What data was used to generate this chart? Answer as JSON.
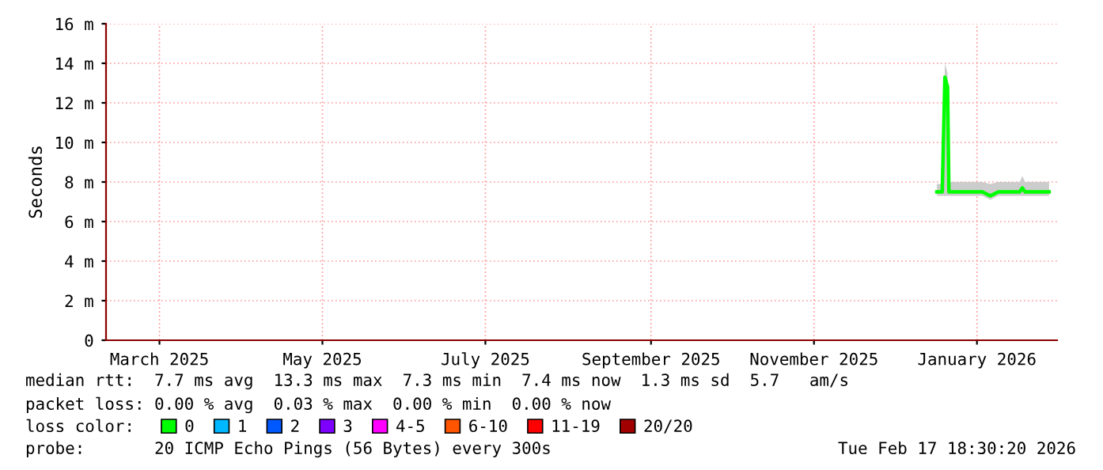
{
  "chart_data": {
    "type": "line",
    "ylabel": "Seconds",
    "legend_title": "loss color:",
    "legend": "bottom",
    "grid": true,
    "line_style": "solid",
    "marker": "none",
    "x": [
      "2026-01-03",
      "2026-01-05",
      "2026-01-06",
      "2026-01-07",
      "2026-01-07T12:00",
      "2026-01-12",
      "2026-01-20",
      "2026-01-23",
      "2026-01-26",
      "2026-02-03",
      "2026-02-04",
      "2026-02-05",
      "2026-02-14"
    ],
    "series": [
      {
        "name": "0",
        "color": "#00ff00",
        "values": [
          7.5,
          7.5,
          13.3,
          12.8,
          7.5,
          7.5,
          7.5,
          7.3,
          7.5,
          7.5,
          7.7,
          7.5,
          7.5
        ],
        "lower": [
          7.3,
          7.3,
          7.3,
          7.3,
          7.3,
          7.3,
          7.3,
          7.1,
          7.3,
          7.3,
          7.3,
          7.3,
          7.3
        ],
        "upper": [
          7.9,
          7.9,
          14,
          13.5,
          8,
          8,
          8,
          7.9,
          8,
          8,
          8.3,
          8,
          8
        ]
      },
      {
        "name": "1",
        "color": "#00b8ff",
        "values": [
          null,
          null,
          null,
          null,
          null,
          null,
          null,
          null,
          null,
          null,
          null,
          null,
          null
        ]
      },
      {
        "name": "2",
        "color": "#0059ff",
        "values": [
          null,
          null,
          null,
          null,
          null,
          null,
          null,
          null,
          null,
          null,
          null,
          null,
          null
        ]
      },
      {
        "name": "3",
        "color": "#7e00ff",
        "values": [
          null,
          null,
          null,
          null,
          null,
          null,
          null,
          null,
          null,
          null,
          null,
          null,
          null
        ]
      },
      {
        "name": "4-5",
        "color": "#ff00ff",
        "values": [
          null,
          null,
          null,
          null,
          null,
          null,
          null,
          null,
          null,
          null,
          null,
          null,
          null
        ]
      },
      {
        "name": "6-10",
        "color": "#ff5500",
        "values": [
          null,
          null,
          null,
          null,
          null,
          null,
          null,
          null,
          null,
          null,
          null,
          null,
          null
        ]
      },
      {
        "name": "11-19",
        "color": "#ff0000",
        "values": [
          null,
          null,
          null,
          null,
          null,
          null,
          null,
          null,
          null,
          null,
          null,
          null,
          null
        ]
      },
      {
        "name": "20/20",
        "color": "#a10000",
        "values": [
          null,
          null,
          null,
          null,
          null,
          null,
          null,
          null,
          null,
          null,
          null,
          null,
          null
        ]
      }
    ],
    "xlim": [
      "2025-02-26",
      "2026-02-17"
    ],
    "xticks": [
      {
        "value": "2025-03-18",
        "label": "March 2025"
      },
      {
        "value": "2025-05-18",
        "label": "May 2025"
      },
      {
        "value": "2025-07-18",
        "label": "July 2025"
      },
      {
        "value": "2025-09-18",
        "label": "September 2025"
      },
      {
        "value": "2025-11-18",
        "label": "November 2025"
      },
      {
        "value": "2026-01-18",
        "label": "January 2026"
      }
    ],
    "ylim": [
      0,
      16
    ],
    "yticks": [
      0,
      {
        "value": 2,
        "label": "2 m"
      },
      {
        "value": 4,
        "label": "4 m"
      },
      {
        "value": 6,
        "label": "6 m"
      },
      {
        "value": 8,
        "label": "8 m"
      },
      {
        "value": 10,
        "label": "10 m"
      },
      {
        "value": 12,
        "label": "12 m"
      },
      {
        "value": 14,
        "label": "14 m"
      },
      {
        "value": 16,
        "label": "16 m"
      }
    ],
    "annotations": [
      "median rtt:  7.7 ms avg  13.3 ms max  7.3 ms min  7.4 ms now  1.3 ms sd  5.7   am/s",
      "packet loss: 0.00 % avg  0.03 % max  0.00 % min  0.00 % now",
      "probe:       20 ICMP Echo Pings (56 Bytes) every 300s",
      "Tue Feb 17 18:30:20 2026"
    ]
  }
}
